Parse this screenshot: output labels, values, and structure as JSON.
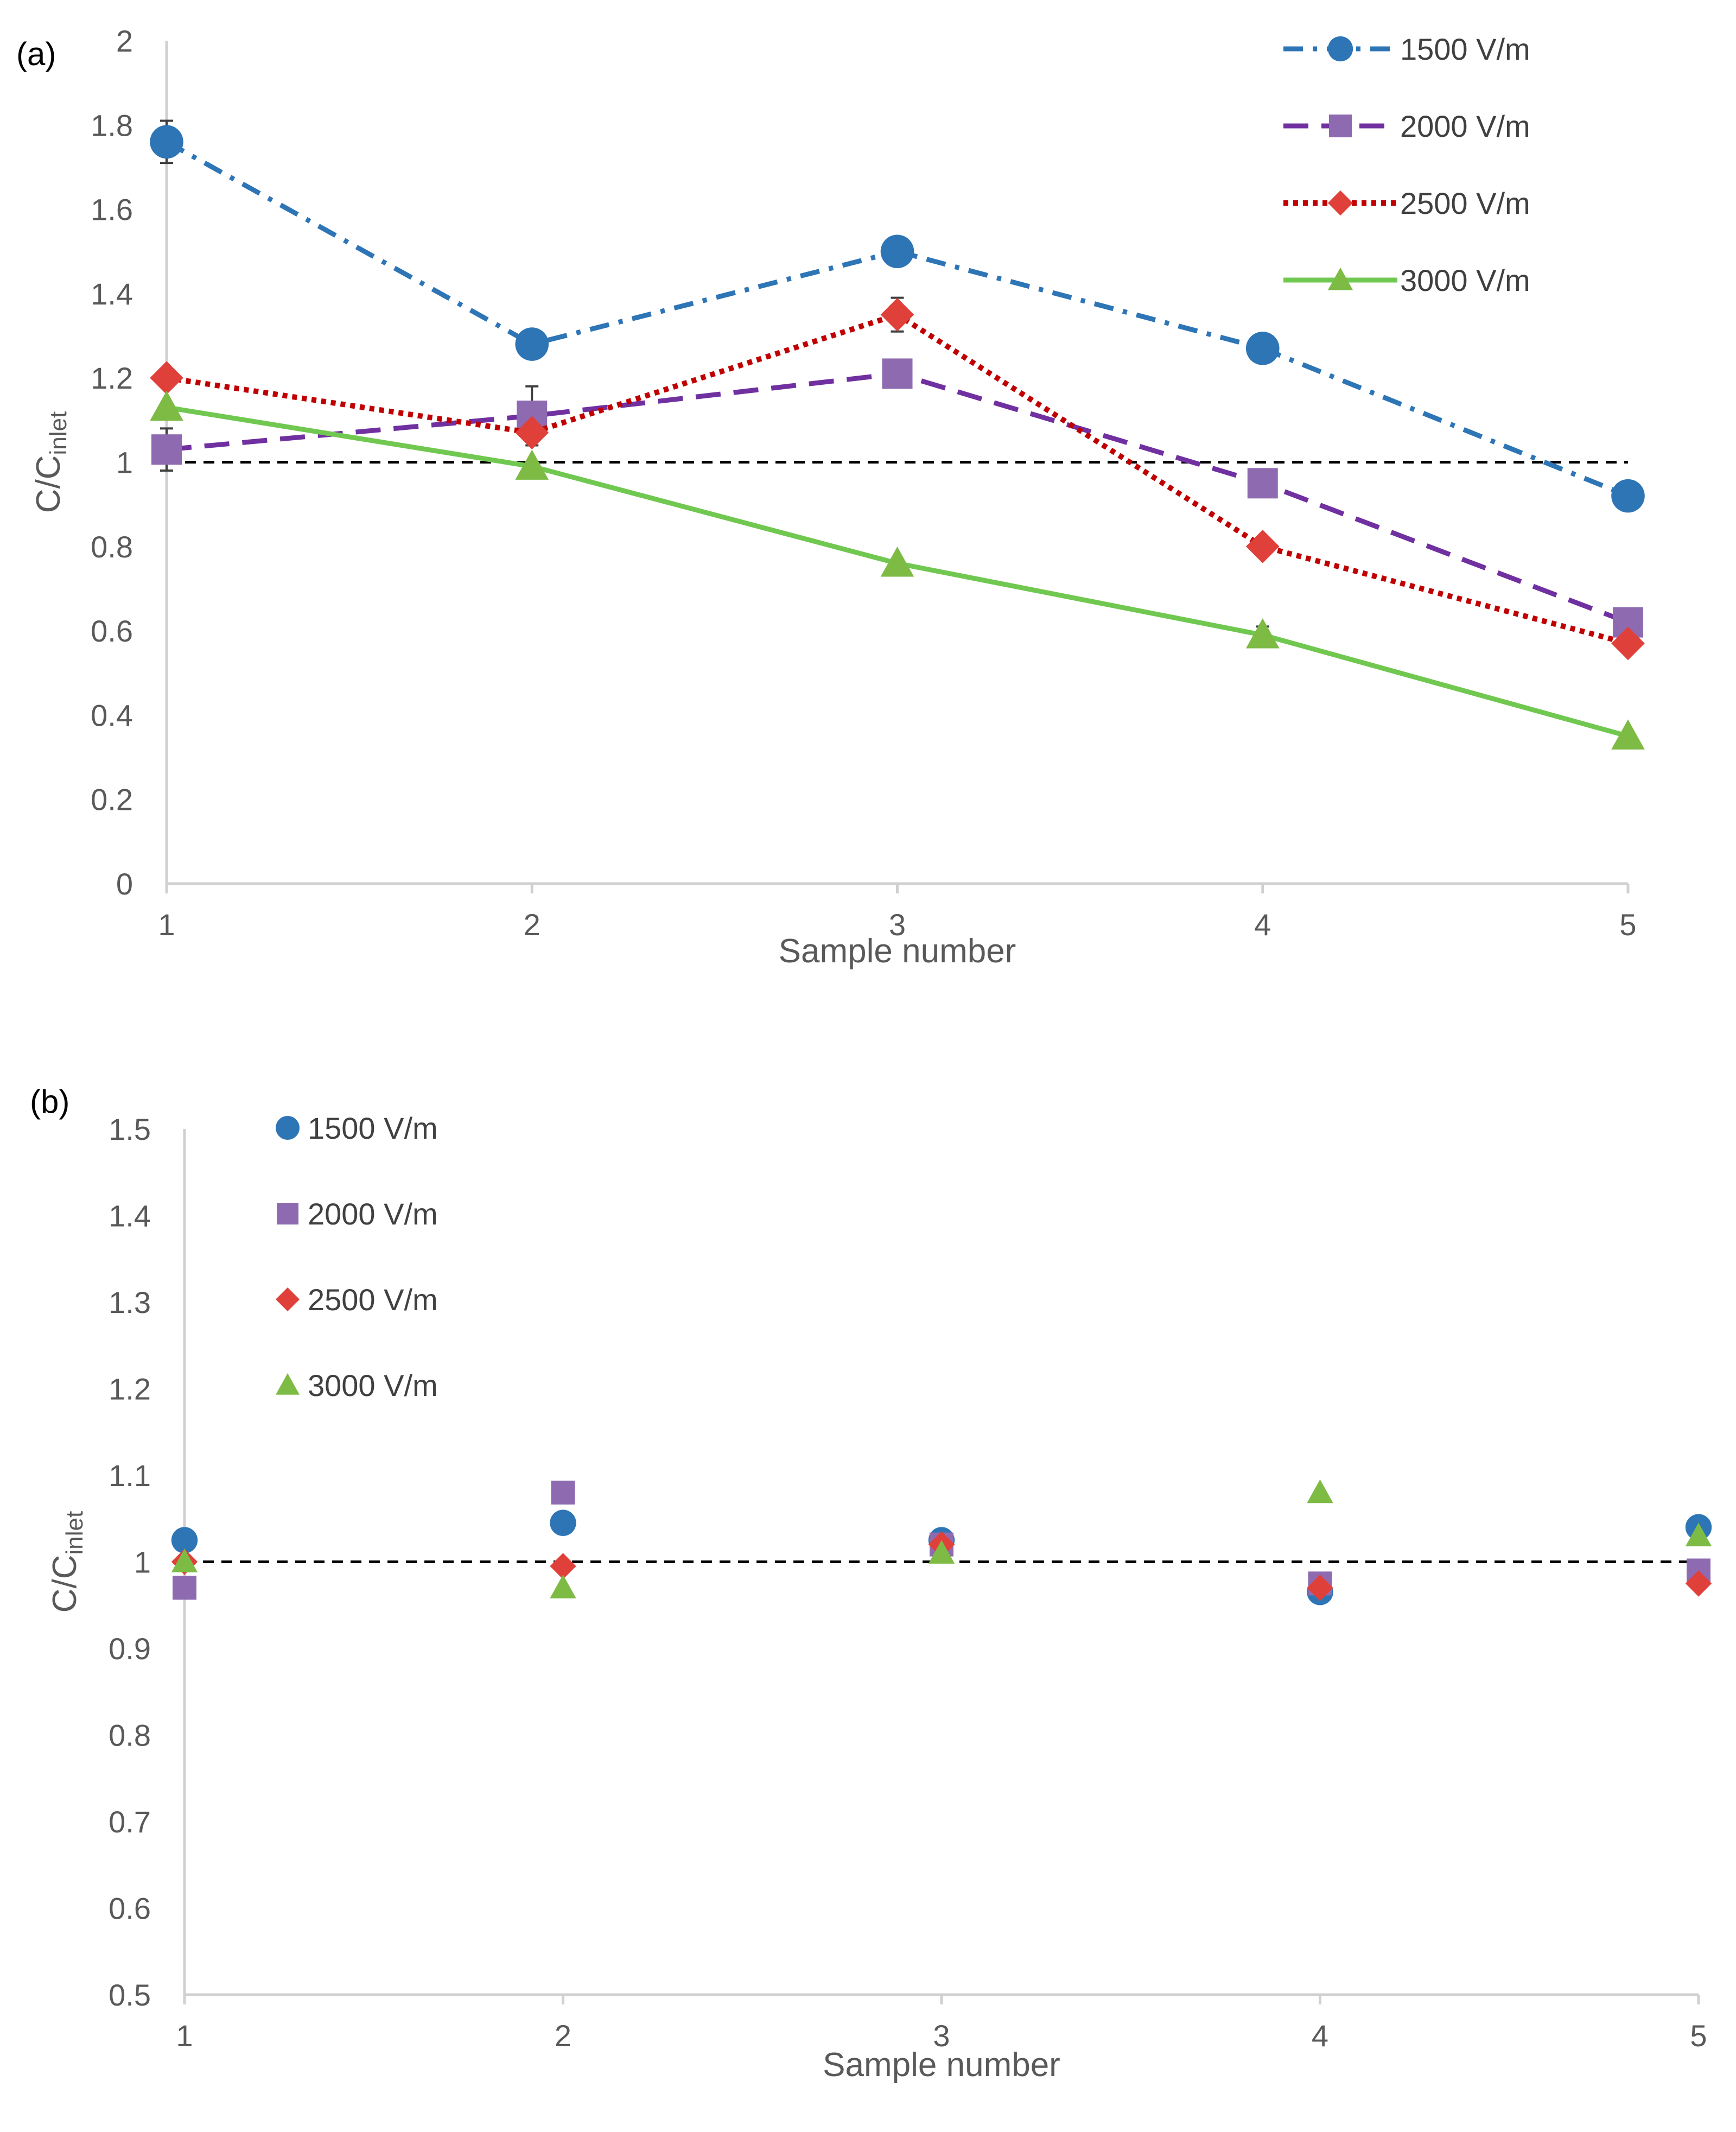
{
  "chart_data": [
    {
      "panel_label": "(a)",
      "type": "line",
      "xlabel": "Sample number",
      "ylabel_main": "C/C",
      "ylabel_sub": "inlet",
      "x": [
        1,
        2,
        3,
        4,
        5
      ],
      "xticks": [
        "1",
        "2",
        "3",
        "4",
        "5"
      ],
      "ylim": [
        0,
        2
      ],
      "yticks": [
        "0",
        "0.2",
        "0.4",
        "0.6",
        "0.8",
        "1",
        "1.2",
        "1.4",
        "1.6",
        "1.8",
        "2"
      ],
      "reference_line": 1,
      "legend_position": "top-right",
      "series": [
        {
          "name": "1500 V/m",
          "marker": "circle",
          "color": "#2E75B6",
          "line": "dashdot",
          "values": [
            1.76,
            1.28,
            1.5,
            1.27,
            0.92
          ],
          "errors": [
            0.05,
            0.0,
            0.02,
            0.0,
            0.0
          ]
        },
        {
          "name": "2000 V/m",
          "marker": "square",
          "color": "#7030A0",
          "marker_color": "#8E6BB0",
          "line": "dashed",
          "values": [
            1.03,
            1.11,
            1.21,
            0.95,
            0.62
          ],
          "errors": [
            0.05,
            0.07,
            0.0,
            0.0,
            0.0
          ]
        },
        {
          "name": "2500 V/m",
          "marker": "diamond",
          "color": "#C00000",
          "marker_color": "#E0403A",
          "line": "dotted",
          "values": [
            1.2,
            1.07,
            1.35,
            0.8,
            0.57
          ],
          "errors": [
            0.0,
            0.0,
            0.04,
            0.0,
            0.0
          ]
        },
        {
          "name": "3000 V/m",
          "marker": "triangle",
          "color": "#70C850",
          "marker_color": "#7DBB45",
          "line": "solid",
          "values": [
            1.13,
            0.99,
            0.76,
            0.59,
            0.35
          ],
          "errors": [
            0.0,
            0.0,
            0.0,
            0.02,
            0.0
          ]
        }
      ]
    },
    {
      "panel_label": "(b)",
      "type": "scatter",
      "xlabel": "Sample number",
      "ylabel_main": "C/C",
      "ylabel_sub": "inlet",
      "x": [
        1,
        2,
        3,
        4,
        5
      ],
      "xticks": [
        "1",
        "2",
        "3",
        "4",
        "5"
      ],
      "ylim": [
        0.5,
        1.5
      ],
      "yticks": [
        "0.5",
        "0.6",
        "0.7",
        "0.8",
        "0.9",
        "1",
        "1.1",
        "1.2",
        "1.3",
        "1.4",
        "1.5"
      ],
      "reference_line": 1,
      "legend_position": "top-left",
      "series": [
        {
          "name": "1500 V/m",
          "marker": "circle",
          "color": "#2E75B6",
          "values": [
            1.025,
            1.045,
            1.025,
            0.965,
            1.04
          ]
        },
        {
          "name": "2000 V/m",
          "marker": "square",
          "color": "#8E6BB0",
          "values": [
            0.97,
            1.08,
            1.02,
            0.975,
            0.99
          ]
        },
        {
          "name": "2500 V/m",
          "marker": "diamond",
          "color": "#E0403A",
          "values": [
            1.0,
            0.995,
            1.02,
            0.97,
            0.975
          ]
        },
        {
          "name": "3000 V/m",
          "marker": "triangle",
          "color": "#7DBB45",
          "values": [
            1.0,
            0.97,
            1.01,
            1.08,
            1.03
          ]
        }
      ]
    }
  ]
}
